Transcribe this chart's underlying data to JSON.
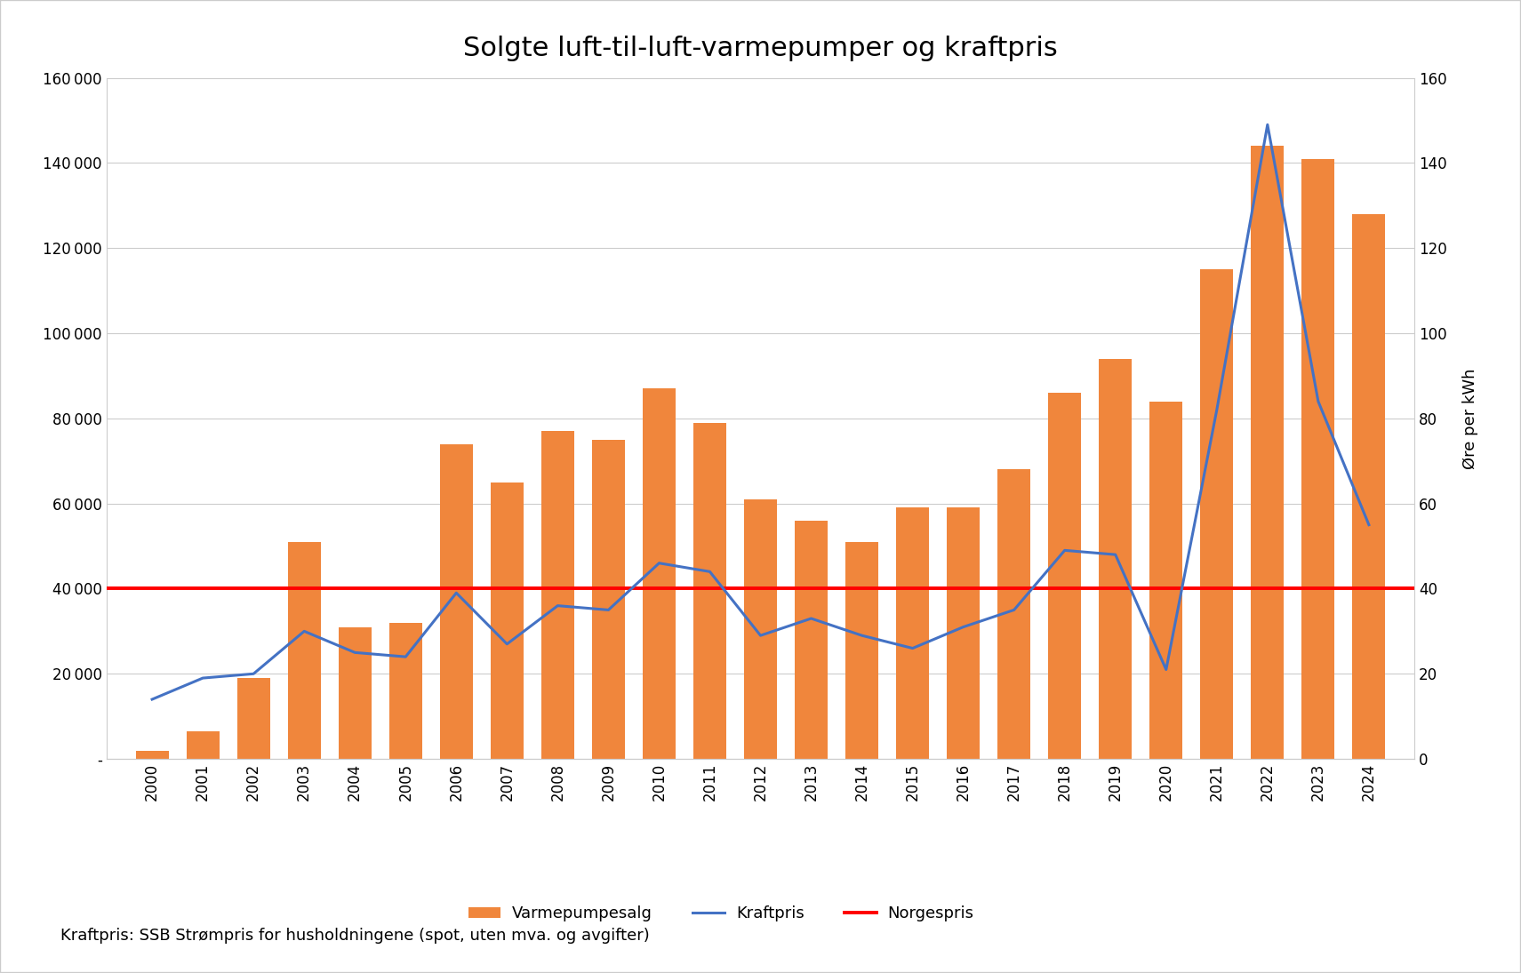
{
  "title": "Solgte luft-til-luft-varmepumper og kraftpris",
  "years": [
    2000,
    2001,
    2002,
    2003,
    2004,
    2005,
    2006,
    2007,
    2008,
    2009,
    2010,
    2011,
    2012,
    2013,
    2014,
    2015,
    2016,
    2017,
    2018,
    2019,
    2020,
    2021,
    2022,
    2023,
    2024
  ],
  "varmepumpesalg": [
    2000,
    6500,
    19000,
    51000,
    31000,
    32000,
    74000,
    65000,
    77000,
    75000,
    87000,
    79000,
    61000,
    56000,
    51000,
    59000,
    59000,
    68000,
    86000,
    94000,
    84000,
    115000,
    144000,
    141000,
    128000
  ],
  "kraftpris": [
    14,
    19,
    20,
    30,
    25,
    24,
    39,
    27,
    36,
    35,
    46,
    44,
    29,
    33,
    29,
    26,
    31,
    35,
    49,
    48,
    21,
    82,
    149,
    84,
    55
  ],
  "norgespris": 40,
  "bar_color": "#F0863C",
  "line_color": "#4472C4",
  "norgespris_color": "#FF0000",
  "ylabel_right": "Øre per kWh",
  "ylim_left": [
    0,
    160000
  ],
  "ylim_right": [
    0,
    160
  ],
  "yticks_left": [
    0,
    20000,
    40000,
    60000,
    80000,
    100000,
    120000,
    140000,
    160000
  ],
  "yticks_right": [
    0,
    20,
    40,
    60,
    80,
    100,
    120,
    140,
    160
  ],
  "ytick_labels_left": [
    "-",
    "20 000",
    "40 000",
    "60 000",
    "80 000",
    "100 000",
    "120 000",
    "140 000",
    "160 000"
  ],
  "legend_labels": [
    "Varmepumpesalg",
    "Kraftpris",
    "Norgespris"
  ],
  "footnote": "Kraftpris: SSB Strømpris for husholdningene (spot, uten mva. og avgifter)",
  "background_color": "#ffffff",
  "border_color": "#cccccc",
  "grid_color": "#cccccc",
  "title_fontsize": 22,
  "axis_fontsize": 12,
  "legend_fontsize": 13,
  "footnote_fontsize": 13
}
